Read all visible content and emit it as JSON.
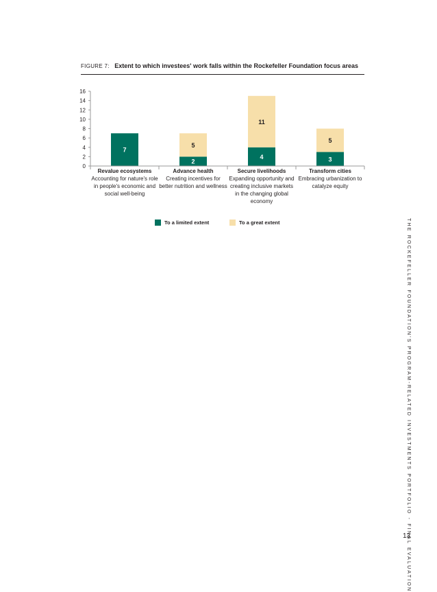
{
  "figure": {
    "label": "FIGURE 7:",
    "title": "Extent to which investees' work falls within the Rockefeller Foundation focus areas"
  },
  "chart_data": {
    "type": "bar",
    "stacked": true,
    "categories": [
      "Revalue ecosystems",
      "Advance health",
      "Secure livelihoods",
      "Transform cities"
    ],
    "category_descriptions": [
      "Accounting for nature's role in people's economic and social well-being",
      "Creating incentives for better nutrition and wellness",
      "Expanding opportunity and creating inclusive markets in the changing global economy",
      "Embracing urbanization to catalyze equity"
    ],
    "series": [
      {
        "name": "To a limited extent",
        "values": [
          7,
          2,
          4,
          3
        ],
        "color": "#00725f"
      },
      {
        "name": "To a great extent",
        "values": [
          0,
          5,
          11,
          5
        ],
        "color": "#f7dfaa"
      }
    ],
    "ylim": [
      0,
      16
    ],
    "yticks": [
      0,
      2,
      4,
      6,
      8,
      10,
      12,
      14,
      16
    ],
    "grid": false,
    "legend_position": "bottom"
  },
  "legend": {
    "limited_label": "To a limited extent",
    "great_label": "To a great extent"
  },
  "sidebar_text": "THE ROCKEFELLER FOUNDATION'S PROGRAM-RELATED INVESTMENTS PORTFOLIO - FINAL EVALUATION",
  "page_number": "13"
}
